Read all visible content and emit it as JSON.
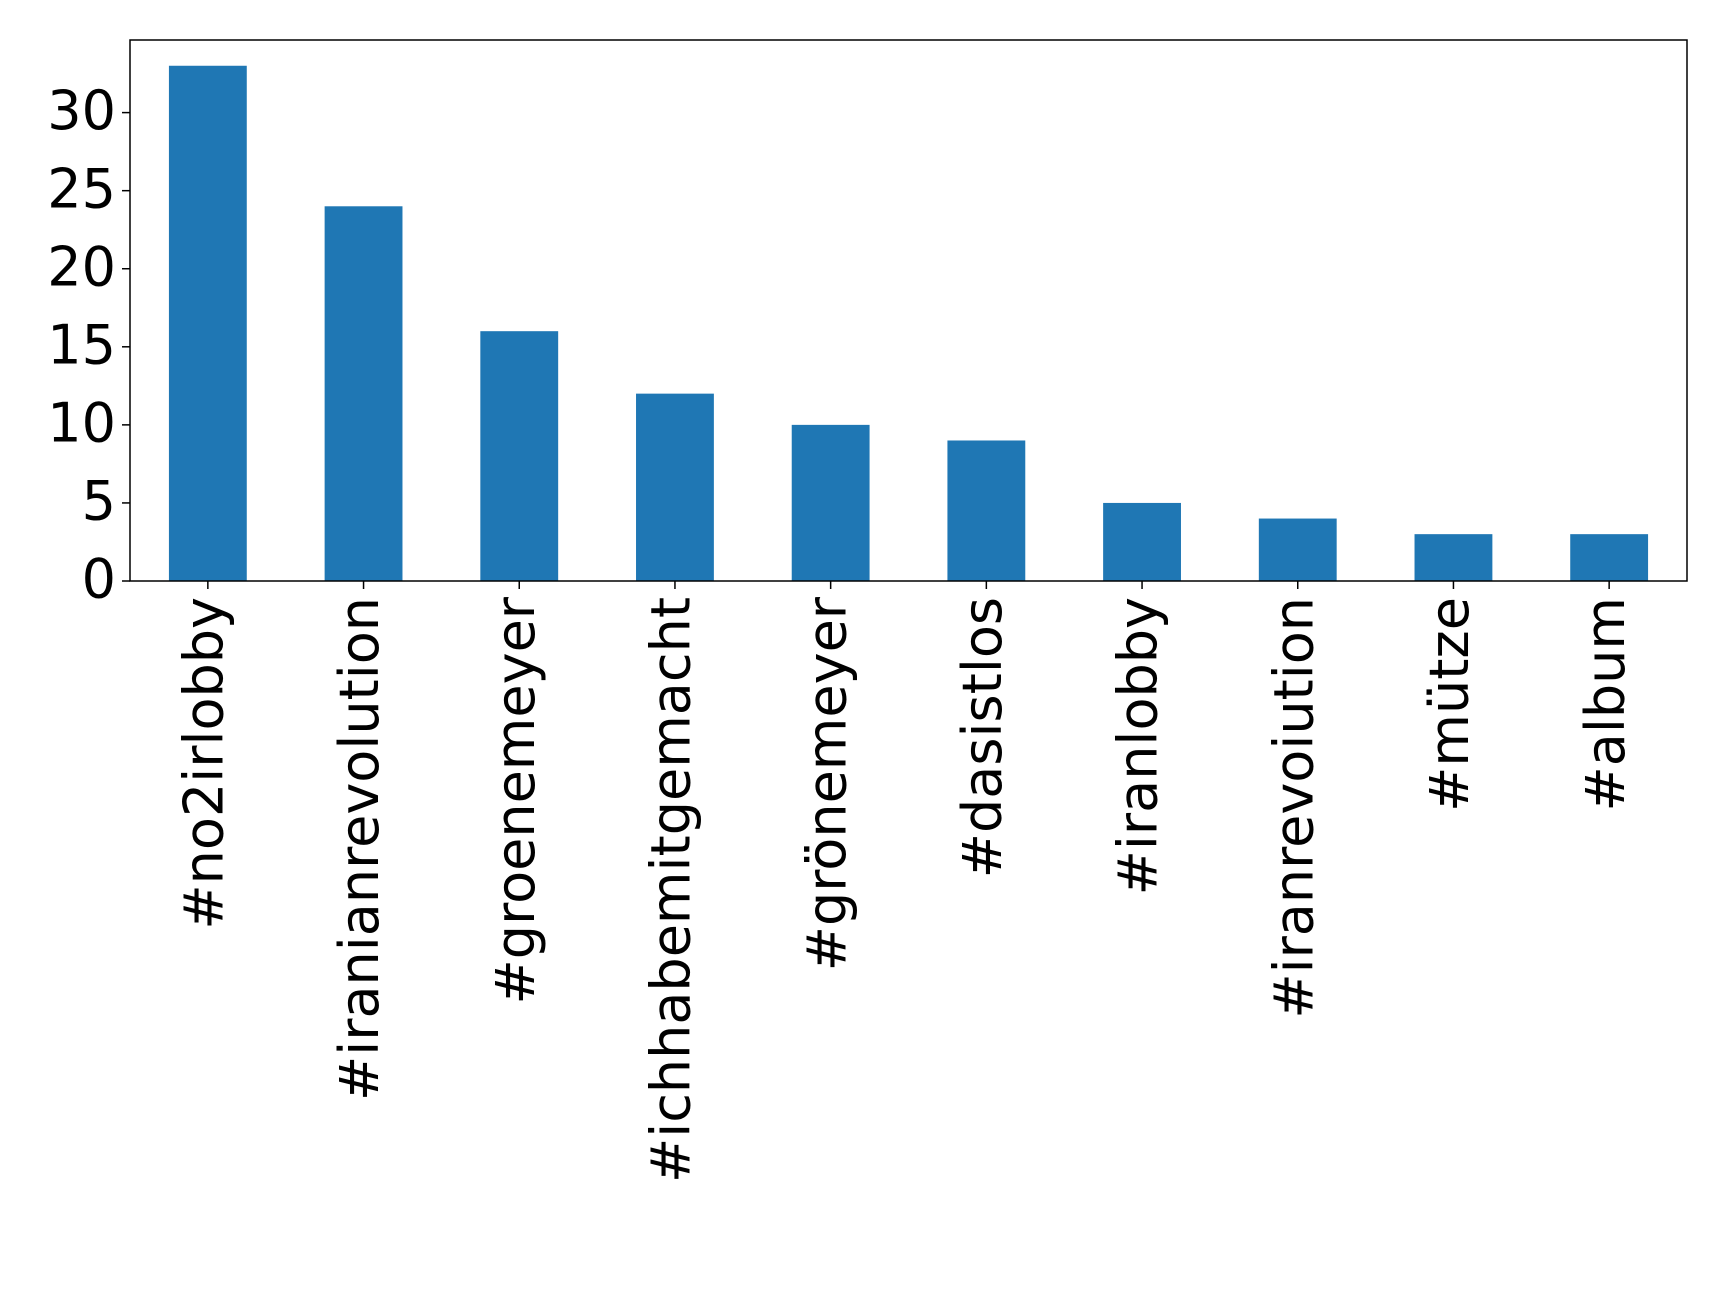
{
  "chart_data": {
    "type": "bar",
    "categories": [
      "#no2irlobby",
      "#iranianrevolution",
      "#groenemeyer",
      "#ichhabemitgemacht",
      "#grönemeyer",
      "#dasistlos",
      "#iranlobby",
      "#iranrevoiution",
      "#mütze",
      "#album"
    ],
    "values": [
      33,
      24,
      16,
      12,
      10,
      9,
      5,
      4,
      3,
      3
    ],
    "color": "#1f77b4",
    "ylim": [
      0,
      34.65
    ],
    "yticks": [
      0,
      5,
      10,
      15,
      20,
      25,
      30
    ],
    "grid": false
  }
}
